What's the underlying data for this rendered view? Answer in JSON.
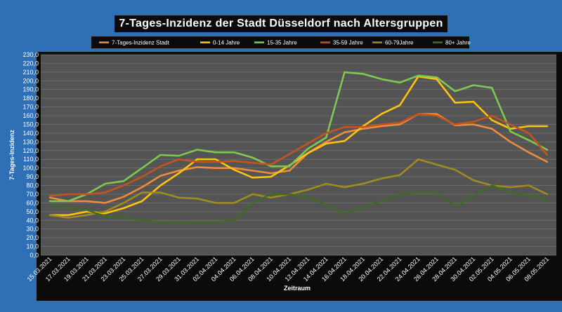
{
  "chart_data": {
    "type": "line",
    "title": "7-Tages-Inzidenz der Stadt Düsseldorf nach Altersgruppen",
    "xlabel": "Zeitraum",
    "ylabel": "7-Tages-Inzidenz",
    "ylim": [
      0,
      230
    ],
    "ytick_step": 10,
    "grid": true,
    "legend_position": "top",
    "x": [
      "15.03.2021",
      "17.03.2021",
      "19.03.2021",
      "21.03.2021",
      "23.03.2021",
      "25.03.2021",
      "27.03.2021",
      "29.03.2021",
      "31.03.2021",
      "02.04.2021",
      "04.04.2021",
      "06.04.2021",
      "08.04.2021",
      "10.04.2021",
      "12.04.2021",
      "14.04.2021",
      "16.04.2021",
      "18.04.2021",
      "20.04.2021",
      "22.04.2021",
      "24.04.2021",
      "26.04.2021",
      "28.04.2021",
      "30.04.2021",
      "02.05.2021",
      "04.05.2021",
      "06.05.2021",
      "08.05.2021"
    ],
    "series": [
      {
        "name": "7-Tages-Inzidenz Stadt",
        "color": "#f08a3c",
        "values": [
          66,
          62,
          62,
          60,
          67,
          78,
          91,
          97,
          101,
          100,
          100,
          97,
          94,
          97,
          117,
          130,
          141,
          145,
          148,
          150,
          162,
          162,
          149,
          150,
          145,
          130,
          118,
          107
        ]
      },
      {
        "name": "0-14 Jahre",
        "color": "#ffc20e",
        "values": [
          46,
          46,
          50,
          48,
          54,
          62,
          80,
          94,
          110,
          110,
          98,
          89,
          90,
          103,
          117,
          128,
          131,
          148,
          162,
          172,
          205,
          202,
          175,
          176,
          155,
          145,
          148,
          148
        ]
      },
      {
        "name": "15-35 Jahre",
        "color": "#7ec850",
        "values": [
          62,
          62,
          70,
          82,
          85,
          100,
          115,
          114,
          121,
          118,
          118,
          112,
          102,
          102,
          122,
          135,
          210,
          208,
          202,
          198,
          206,
          204,
          188,
          195,
          192,
          142,
          132,
          121
        ]
      },
      {
        "name": "35-59 Jahre",
        "color": "#c2541e",
        "values": [
          68,
          70,
          70,
          72,
          80,
          90,
          102,
          110,
          107,
          107,
          108,
          106,
          104,
          116,
          128,
          140,
          147,
          147,
          150,
          152,
          162,
          160,
          150,
          153,
          160,
          150,
          140,
          115
        ]
      },
      {
        "name": "60-79Jahre",
        "color": "#a08b1d",
        "values": [
          46,
          43,
          46,
          50,
          60,
          72,
          72,
          66,
          65,
          60,
          60,
          70,
          66,
          70,
          75,
          82,
          78,
          82,
          88,
          92,
          110,
          104,
          98,
          86,
          80,
          78,
          80,
          70
        ]
      },
      {
        "name": "80+ Jahre",
        "color": "#3f6b26",
        "values": [
          58,
          55,
          52,
          44,
          44,
          40,
          38,
          37,
          38,
          38,
          40,
          60,
          70,
          70,
          66,
          58,
          48,
          55,
          62,
          70,
          72,
          72,
          56,
          68,
          80,
          72,
          68,
          64
        ]
      }
    ]
  }
}
